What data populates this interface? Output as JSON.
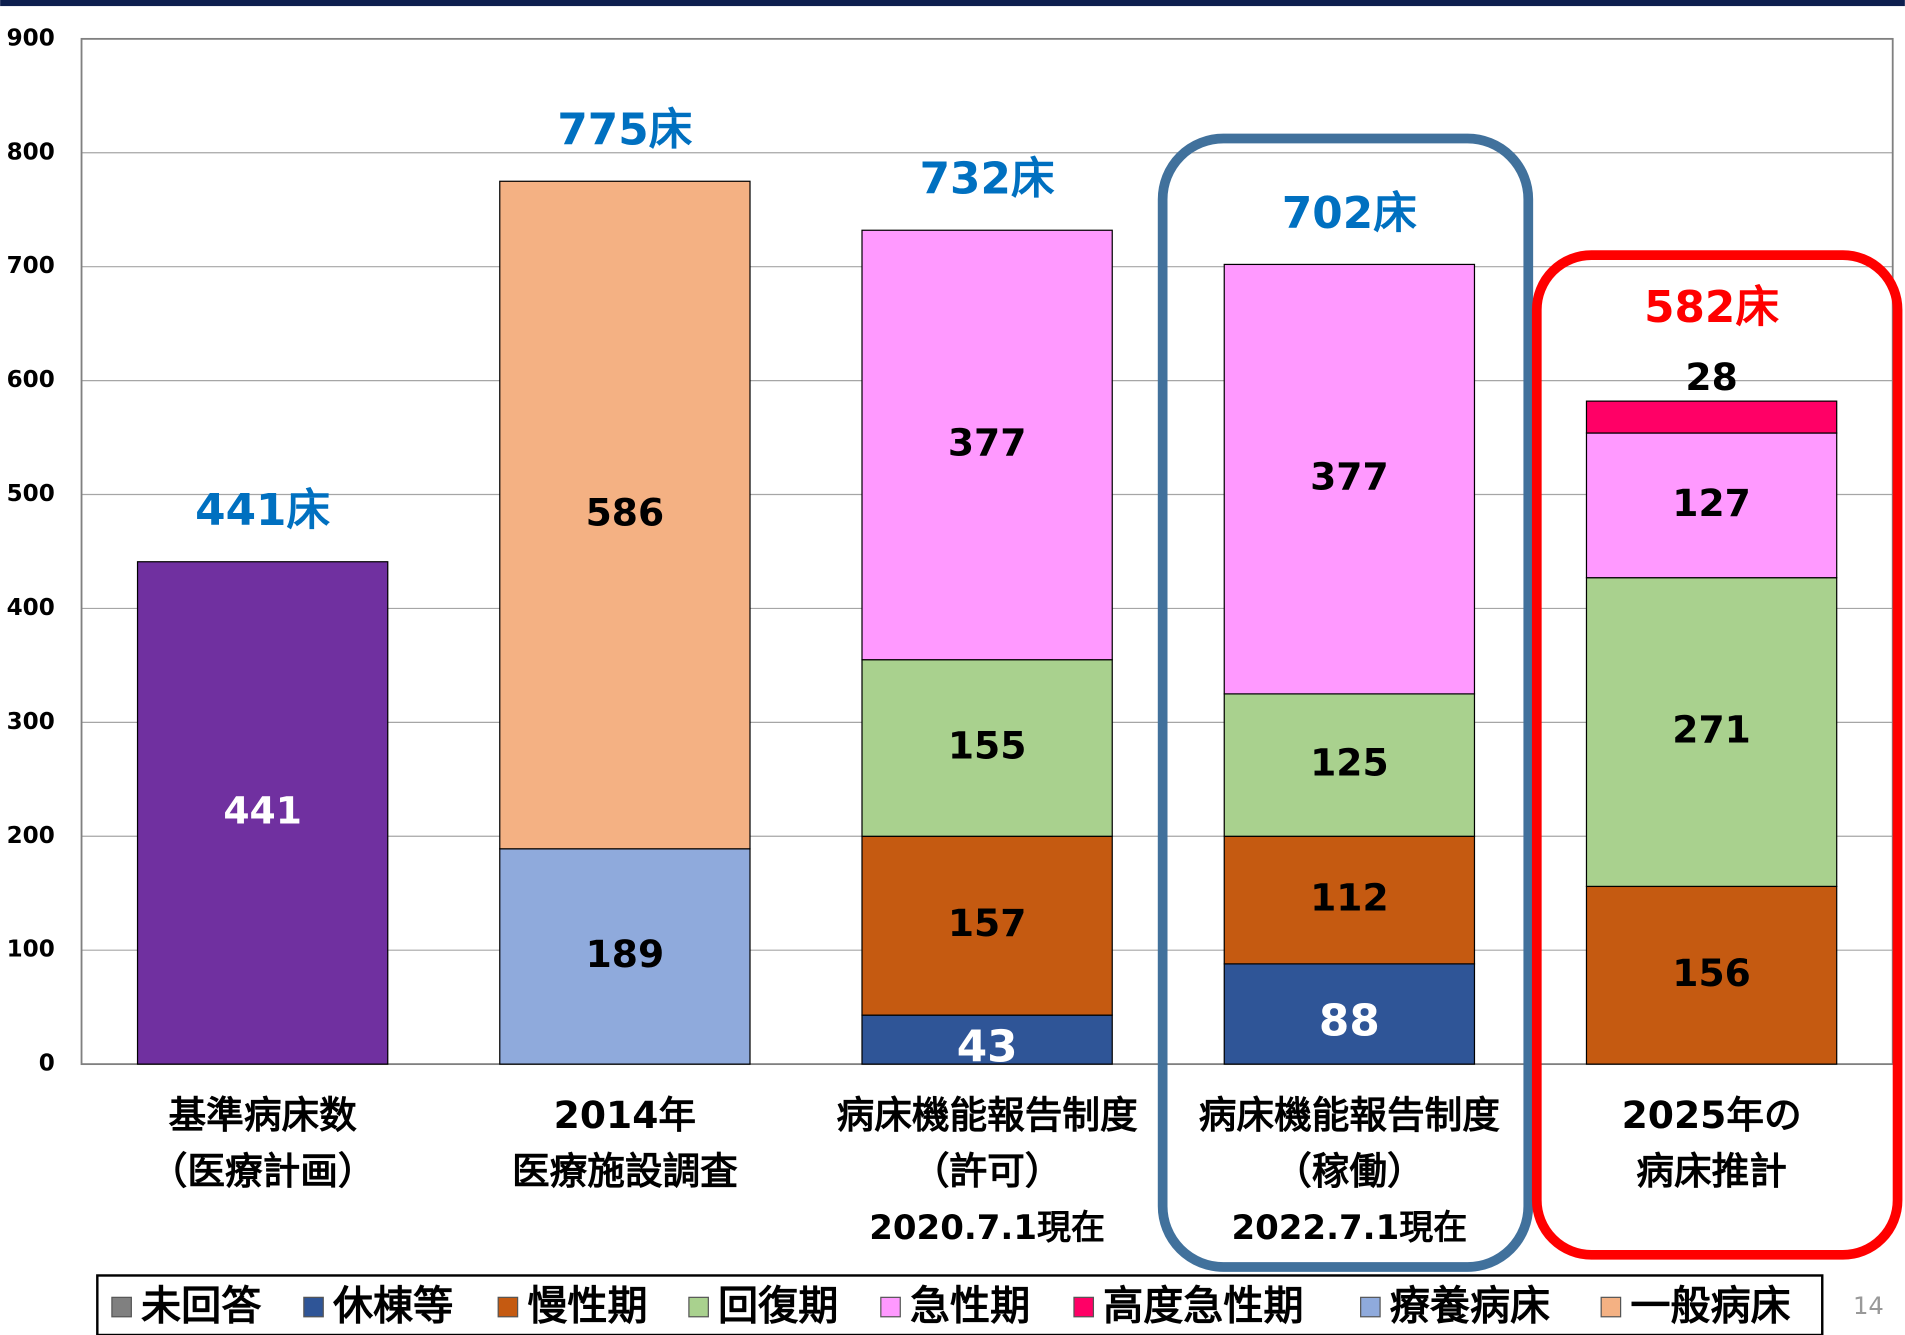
{
  "chart_data": {
    "type": "stacked_bar",
    "categories": [
      [
        "基準病床数",
        "（医療計画）"
      ],
      [
        "2014年",
        "医療施設調査"
      ],
      [
        "病床機能報告制度",
        "（許可）",
        "2020.7.1現在"
      ],
      [
        "病床機能報告制度",
        "（稼働）",
        "2022.7.1現在"
      ],
      [
        "2025年の",
        "病床推計"
      ]
    ],
    "series": [
      {
        "color": "#7030a0",
        "label_color": "#ffffff",
        "values": [
          441,
          null,
          null,
          null,
          null
        ]
      },
      {
        "name": "未回答",
        "color": "#808080",
        "label_color": "#000000",
        "values": [
          null,
          null,
          null,
          null,
          null
        ]
      },
      {
        "name": "休棟等",
        "color": "#2f5597",
        "label_color": "#ffffff",
        "values": [
          null,
          null,
          43,
          88,
          null
        ]
      },
      {
        "name": "慢性期",
        "color": "#c55a11",
        "label_color": "#000000",
        "values": [
          null,
          null,
          157,
          112,
          156
        ]
      },
      {
        "name": "回復期",
        "color": "#a9d18e",
        "label_color": "#000000",
        "values": [
          null,
          null,
          155,
          125,
          271
        ]
      },
      {
        "name": "急性期",
        "color": "#ff99ff",
        "label_color": "#000000",
        "values": [
          null,
          null,
          377,
          377,
          127
        ]
      },
      {
        "name": "高度急性期",
        "color": "#ff0066",
        "label_color": "#000000",
        "values": [
          null,
          null,
          null,
          null,
          28
        ]
      },
      {
        "name": "療養病床",
        "color": "#8faadc",
        "label_color": "#000000",
        "values": [
          null,
          189,
          null,
          null,
          null
        ]
      },
      {
        "name": "一般病床",
        "color": "#f4b183",
        "label_color": "#000000",
        "values": [
          null,
          586,
          null,
          null,
          null
        ]
      }
    ],
    "total_labels": [
      "441床",
      "775床",
      "732床",
      "702床",
      "582床"
    ],
    "total_colors": [
      "#0070c0",
      "#0070c0",
      "#0070c0",
      "#0070c0",
      "#ff0000"
    ],
    "ylim": [
      0,
      900
    ],
    "yticks": [
      0,
      100,
      200,
      300,
      400,
      500,
      600,
      700,
      800,
      900
    ],
    "grid": true
  },
  "page_number": "14"
}
